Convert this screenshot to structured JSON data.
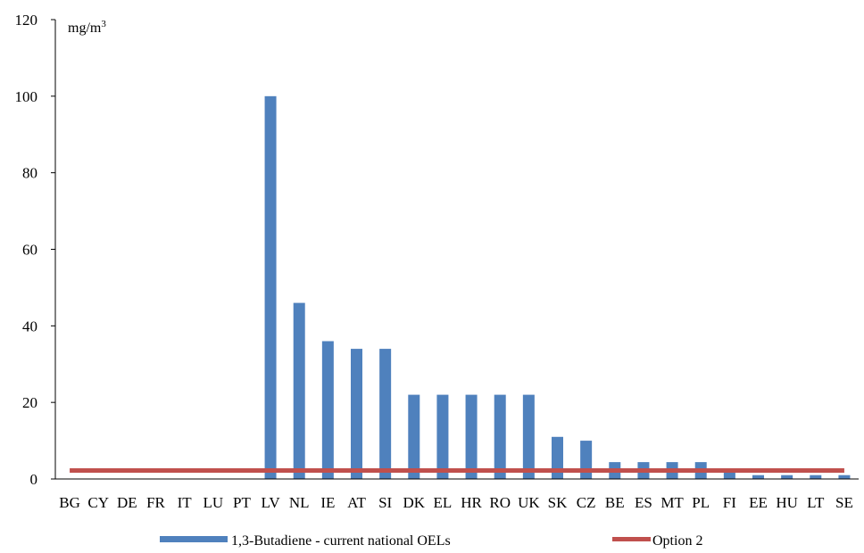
{
  "chart_data": {
    "type": "bar",
    "unit_label": "mg/m",
    "unit_superscript": "3",
    "categories": [
      "BG",
      "CY",
      "DE",
      "FR",
      "IT",
      "LU",
      "PT",
      "LV",
      "NL",
      "IE",
      "AT",
      "SI",
      "DK",
      "EL",
      "HR",
      "RO",
      "UK",
      "SK",
      "CZ",
      "BE",
      "ES",
      "MT",
      "PL",
      "FI",
      "EE",
      "HU",
      "LT",
      "SE"
    ],
    "series": [
      {
        "name": "1,3-Butadiene - current national OELs",
        "type": "bar",
        "color": "#4F81BD",
        "values": [
          0,
          0,
          0,
          0,
          0,
          0,
          0,
          100,
          46,
          36,
          34,
          34,
          22,
          22,
          22,
          22,
          22,
          11,
          10,
          4.4,
          4.4,
          4.4,
          4.4,
          2.2,
          1,
          1,
          1,
          1
        ]
      },
      {
        "name": "Option 2",
        "type": "line",
        "color": "#C0504D",
        "value": 2.2
      }
    ],
    "ylim": [
      0,
      120
    ],
    "yticks": [
      0,
      20,
      40,
      60,
      80,
      100,
      120
    ],
    "grid": false,
    "legend_position": "bottom"
  }
}
